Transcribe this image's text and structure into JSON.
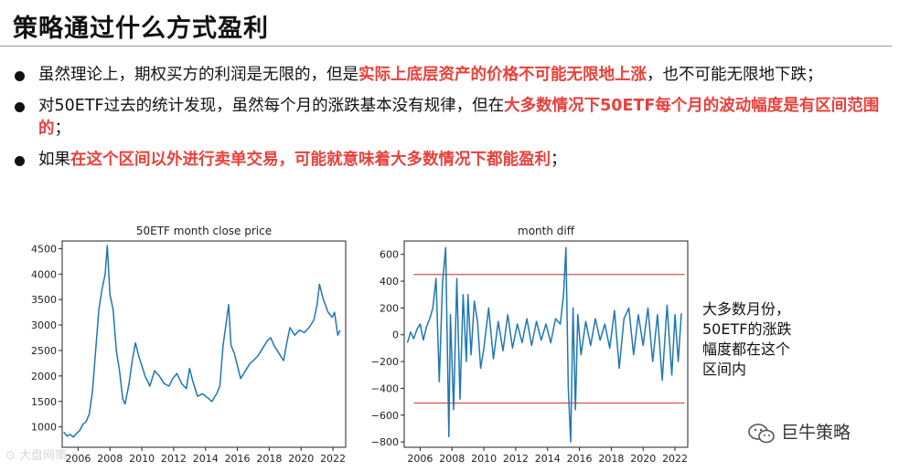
{
  "header": {
    "title": "策略通过什么方式盈利"
  },
  "bullets": [
    {
      "parts": [
        {
          "text": "虽然理论上，期权买方的利润是无限的，但是",
          "hl": false
        },
        {
          "text": "实际上底层资产的价格不可能无限地上涨",
          "hl": true
        },
        {
          "text": "，也不可能无限地下跌；",
          "hl": false
        }
      ]
    },
    {
      "parts": [
        {
          "text": "对50ETF过去的统计发现，虽然每个月的涨跌基本没有规律，但在",
          "hl": false
        },
        {
          "text": "大多数情况下50ETF每个月的波动幅度是有区间范围的",
          "hl": true
        },
        {
          "text": "；",
          "hl": false
        }
      ]
    },
    {
      "parts": [
        {
          "text": "如果",
          "hl": false
        },
        {
          "text": "在这个区间以外进行卖单交易，可能就意味着大多数情况下都能盈利",
          "hl": true
        },
        {
          "text": "；",
          "hl": false
        }
      ]
    }
  ],
  "colors": {
    "highlight": "#e8413b",
    "line": "#1f77b4",
    "band": "#d62728"
  },
  "chart_data": [
    {
      "type": "line",
      "title": "50ETF month close price",
      "xlim": [
        2005,
        2022.8
      ],
      "ylim": [
        600,
        4650
      ],
      "xticks": [
        2006,
        2008,
        2010,
        2012,
        2014,
        2016,
        2018,
        2020,
        2022
      ],
      "yticks": [
        1000,
        1500,
        2000,
        2500,
        3000,
        3500,
        4000,
        4500
      ],
      "xtick_labels": [
        "2006",
        "2008",
        "2010",
        "2012",
        "2014",
        "2016",
        "2018",
        "2020",
        "2022"
      ],
      "ytick_labels": [
        "1000",
        "1500",
        "2000",
        "2500",
        "3000",
        "3500",
        "4000",
        "4500"
      ],
      "series": [
        {
          "x": [
            2005.1,
            2005.3,
            2005.5,
            2005.7,
            2005.9,
            2006.1,
            2006.3,
            2006.5,
            2006.7,
            2006.9,
            2007.1,
            2007.3,
            2007.5,
            2007.7,
            2007.83,
            2008.0,
            2008.2,
            2008.4,
            2008.6,
            2008.8,
            2008.95,
            2009.2,
            2009.4,
            2009.6,
            2009.8,
            2009.95,
            2010.2,
            2010.5,
            2010.8,
            2011.1,
            2011.4,
            2011.7,
            2011.95,
            2012.2,
            2012.5,
            2012.8,
            2013.0,
            2013.2,
            2013.5,
            2013.8,
            2014.1,
            2014.4,
            2014.7,
            2014.9,
            2015.1,
            2015.3,
            2015.45,
            2015.6,
            2015.8,
            2016.0,
            2016.2,
            2016.5,
            2016.8,
            2017.0,
            2017.3,
            2017.6,
            2017.9,
            2018.1,
            2018.3,
            2018.6,
            2018.9,
            2019.1,
            2019.3,
            2019.6,
            2019.9,
            2020.2,
            2020.5,
            2020.8,
            2021.0,
            2021.15,
            2021.4,
            2021.7,
            2021.95,
            2022.1,
            2022.3,
            2022.45
          ],
          "y": [
            900,
            820,
            850,
            800,
            870,
            930,
            1050,
            1100,
            1250,
            1700,
            2500,
            3300,
            3700,
            4000,
            4560,
            3600,
            3300,
            2500,
            2100,
            1550,
            1450,
            1850,
            2300,
            2650,
            2400,
            2250,
            2000,
            1800,
            2100,
            2000,
            1850,
            1800,
            1950,
            2050,
            1850,
            1750,
            2150,
            1900,
            1600,
            1650,
            1580,
            1500,
            1650,
            1800,
            2600,
            3050,
            3400,
            2600,
            2450,
            2200,
            1950,
            2100,
            2250,
            2300,
            2400,
            2550,
            2700,
            2750,
            2600,
            2450,
            2300,
            2650,
            2950,
            2800,
            2900,
            2850,
            2950,
            3100,
            3400,
            3800,
            3500,
            3250,
            3150,
            3250,
            2800,
            2900
          ]
        }
      ]
    },
    {
      "type": "line",
      "title": "month diff",
      "xlim": [
        2005,
        2022.8
      ],
      "ylim": [
        -840,
        700
      ],
      "xticks": [
        2006,
        2008,
        2010,
        2012,
        2014,
        2016,
        2018,
        2020,
        2022
      ],
      "yticks": [
        -800,
        -600,
        -400,
        -200,
        0,
        200,
        400,
        600
      ],
      "xtick_labels": [
        "2006",
        "2008",
        "2010",
        "2012",
        "2014",
        "2016",
        "2018",
        "2020",
        "2022"
      ],
      "ytick_labels": [
        "−800",
        "−600",
        "−400",
        "−200",
        "0",
        "200",
        "400",
        "600"
      ],
      "bands": [
        450,
        -510
      ],
      "series": [
        {
          "x": [
            2005.2,
            2005.4,
            2005.6,
            2005.8,
            2006.0,
            2006.2,
            2006.4,
            2006.6,
            2006.8,
            2007.0,
            2007.2,
            2007.4,
            2007.6,
            2007.8,
            2007.9,
            2008.1,
            2008.3,
            2008.5,
            2008.7,
            2008.9,
            2009.0,
            2009.2,
            2009.4,
            2009.6,
            2009.8,
            2010.0,
            2010.3,
            2010.6,
            2010.9,
            2011.2,
            2011.5,
            2011.8,
            2012.1,
            2012.4,
            2012.7,
            2013.0,
            2013.3,
            2013.6,
            2013.9,
            2014.2,
            2014.5,
            2014.8,
            2015.0,
            2015.15,
            2015.3,
            2015.45,
            2015.6,
            2015.75,
            2015.9,
            2016.1,
            2016.4,
            2016.7,
            2017.0,
            2017.3,
            2017.6,
            2017.9,
            2018.2,
            2018.5,
            2018.8,
            2019.1,
            2019.4,
            2019.7,
            2020.0,
            2020.3,
            2020.6,
            2020.9,
            2021.2,
            2021.5,
            2021.8,
            2022.0,
            2022.2,
            2022.4
          ],
          "y": [
            -60,
            20,
            -30,
            40,
            80,
            -40,
            60,
            120,
            200,
            420,
            -350,
            380,
            650,
            -760,
            150,
            -560,
            420,
            -480,
            300,
            -200,
            300,
            -150,
            250,
            100,
            -250,
            -100,
            200,
            -180,
            100,
            -120,
            150,
            -100,
            80,
            -60,
            120,
            -80,
            100,
            -40,
            80,
            -60,
            120,
            80,
            300,
            650,
            -400,
            -800,
            200,
            -560,
            150,
            -150,
            100,
            -80,
            120,
            -40,
            80,
            -100,
            180,
            -250,
            120,
            200,
            -150,
            150,
            -80,
            200,
            -200,
            150,
            -340,
            220,
            -300,
            150,
            -200,
            160
          ]
        }
      ]
    }
  ],
  "annotation": {
    "lines": [
      "大多数月份，",
      "50ETF的涨跌",
      "幅度都在这个",
      "区间内"
    ]
  },
  "brand": {
    "text": "巨牛策略"
  },
  "watermark": {
    "text": "大盘网策"
  }
}
